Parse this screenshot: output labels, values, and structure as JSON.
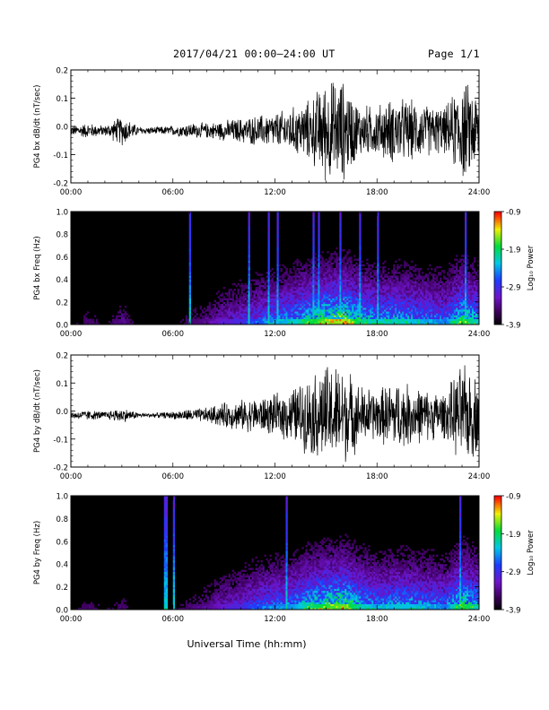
{
  "header": {
    "date_range": "2017/04/21  00:00–24:00 UT",
    "page": "Page 1/1"
  },
  "xlabel": "Universal Time (hh:mm)",
  "colorbar": {
    "label": "Log₁₀ Power",
    "ticks": [
      "-0.9",
      "-1.9",
      "-2.9",
      "-3.9"
    ],
    "range": [
      -3.9,
      -0.9
    ]
  },
  "x_ticks": [
    "00:00",
    "06:00",
    "12:00",
    "18:00",
    "24:00"
  ],
  "chart_data": [
    {
      "type": "line",
      "ylabel": "PG4 bx dB/dt (nT/sec)",
      "x_range_hours": [
        0,
        24
      ],
      "ylim": [
        -0.2,
        0.2
      ],
      "yticks": [
        "0.2",
        "0.1",
        "0.0",
        "-0.1",
        "-0.2"
      ],
      "x_hours": [
        0,
        1,
        2,
        3,
        4,
        5,
        6,
        7,
        8,
        9,
        10,
        11,
        12,
        13,
        14,
        15,
        16,
        17,
        18,
        19,
        20,
        21,
        22,
        23,
        24
      ],
      "amplitude": [
        0.02,
        0.03,
        0.02,
        0.06,
        0.015,
        0.015,
        0.02,
        0.03,
        0.03,
        0.04,
        0.05,
        0.06,
        0.07,
        0.09,
        0.12,
        0.2,
        0.2,
        0.1,
        0.1,
        0.13,
        0.12,
        0.1,
        0.09,
        0.2,
        0.15
      ]
    },
    {
      "type": "heatmap",
      "ylabel": "PG4 bx Freq (Hz)",
      "x_range_hours": [
        0,
        24
      ],
      "ylim": [
        0.0,
        1.0
      ],
      "yticks": [
        "1.0",
        "0.8",
        "0.6",
        "0.4",
        "0.2",
        "0.0"
      ],
      "value_range": [
        -3.9,
        -0.9
      ],
      "activity_by_hour": [
        0.1,
        0.15,
        0.1,
        0.2,
        0.05,
        0.05,
        0.1,
        0.15,
        0.2,
        0.3,
        0.35,
        0.45,
        0.55,
        0.6,
        0.75,
        0.85,
        0.9,
        0.7,
        0.6,
        0.65,
        0.6,
        0.55,
        0.5,
        0.8,
        0.6
      ]
    },
    {
      "type": "line",
      "ylabel": "PG4 by dB/dt (nT/sec)",
      "x_range_hours": [
        0,
        24
      ],
      "ylim": [
        -0.2,
        0.2
      ],
      "yticks": [
        "0.2",
        "0.1",
        "0.0",
        "-0.1",
        "-0.2"
      ],
      "x_hours": [
        0,
        1,
        2,
        3,
        4,
        5,
        6,
        7,
        8,
        9,
        10,
        11,
        12,
        13,
        14,
        15,
        16,
        17,
        18,
        19,
        20,
        21,
        22,
        23,
        24
      ],
      "amplitude": [
        0.015,
        0.02,
        0.015,
        0.03,
        0.01,
        0.01,
        0.015,
        0.025,
        0.03,
        0.05,
        0.06,
        0.07,
        0.08,
        0.11,
        0.15,
        0.2,
        0.2,
        0.12,
        0.1,
        0.14,
        0.12,
        0.1,
        0.09,
        0.2,
        0.15
      ]
    },
    {
      "type": "heatmap",
      "ylabel": "PG4 by Freq (Hz)",
      "x_range_hours": [
        0,
        24
      ],
      "ylim": [
        0.0,
        1.0
      ],
      "yticks": [
        "1.0",
        "0.8",
        "0.6",
        "0.4",
        "0.2",
        "0.0"
      ],
      "value_range": [
        -3.9,
        -0.9
      ],
      "activity_by_hour": [
        0.1,
        0.15,
        0.1,
        0.15,
        0.05,
        0.05,
        0.1,
        0.15,
        0.2,
        0.3,
        0.35,
        0.45,
        0.5,
        0.55,
        0.7,
        0.8,
        0.85,
        0.65,
        0.55,
        0.6,
        0.6,
        0.55,
        0.5,
        0.8,
        0.6
      ]
    }
  ]
}
